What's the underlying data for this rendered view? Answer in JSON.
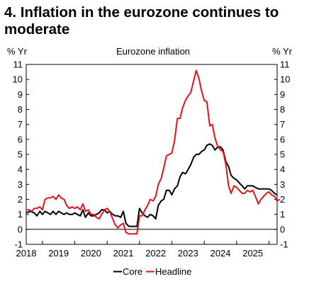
{
  "figure": {
    "title": "4. Inflation in the eurozone continues to moderate"
  },
  "chart_data": {
    "type": "line",
    "title": "Eurozone inflation",
    "ylabel_left": "% Yr",
    "ylabel_right": "% Yr",
    "xlim": [
      2017.5,
      2025.25
    ],
    "ylim": [
      -1,
      11
    ],
    "yticks": [
      -1,
      0,
      1,
      2,
      3,
      4,
      5,
      6,
      7,
      8,
      9,
      10,
      11
    ],
    "xtick_labels": [
      "2018",
      "2019",
      "2020",
      "2021",
      "2022",
      "2023",
      "2024",
      "2025"
    ],
    "grid": false,
    "zero_line": true,
    "legend_position": "bottom-center",
    "series": [
      {
        "name": "Core",
        "color": "#000000",
        "points": [
          [
            2017.5,
            1.1
          ],
          [
            2017.63,
            1.2
          ],
          [
            2017.75,
            1.1
          ],
          [
            2017.83,
            0.9
          ],
          [
            2017.92,
            1.2
          ],
          [
            2018.0,
            1.0
          ],
          [
            2018.08,
            1.2
          ],
          [
            2018.17,
            1.1
          ],
          [
            2018.25,
            1.0
          ],
          [
            2018.33,
            1.2
          ],
          [
            2018.42,
            1.0
          ],
          [
            2018.5,
            1.2
          ],
          [
            2018.58,
            1.1
          ],
          [
            2018.67,
            1.0
          ],
          [
            2018.75,
            1.1
          ],
          [
            2018.83,
            1.0
          ],
          [
            2018.92,
            1.0
          ],
          [
            2019.0,
            1.1
          ],
          [
            2019.08,
            1.0
          ],
          [
            2019.17,
            0.9
          ],
          [
            2019.25,
            1.3
          ],
          [
            2019.33,
            0.8
          ],
          [
            2019.42,
            1.1
          ],
          [
            2019.5,
            0.9
          ],
          [
            2019.58,
            0.9
          ],
          [
            2019.67,
            1.0
          ],
          [
            2019.75,
            1.1
          ],
          [
            2019.83,
            1.3
          ],
          [
            2019.92,
            1.3
          ],
          [
            2020.0,
            1.1
          ],
          [
            2020.08,
            1.2
          ],
          [
            2020.17,
            1.0
          ],
          [
            2020.25,
            0.9
          ],
          [
            2020.33,
            0.9
          ],
          [
            2020.42,
            0.8
          ],
          [
            2020.5,
            1.2
          ],
          [
            2020.58,
            0.4
          ],
          [
            2020.67,
            0.2
          ],
          [
            2020.75,
            0.2
          ],
          [
            2020.83,
            0.2
          ],
          [
            2020.92,
            0.2
          ],
          [
            2021.0,
            1.4
          ],
          [
            2021.08,
            1.1
          ],
          [
            2021.17,
            0.9
          ],
          [
            2021.25,
            0.8
          ],
          [
            2021.33,
            1.0
          ],
          [
            2021.42,
            0.9
          ],
          [
            2021.5,
            0.7
          ],
          [
            2021.58,
            1.6
          ],
          [
            2021.67,
            1.9
          ],
          [
            2021.75,
            2.0
          ],
          [
            2021.83,
            2.6
          ],
          [
            2021.92,
            2.6
          ],
          [
            2022.0,
            2.3
          ],
          [
            2022.08,
            2.7
          ],
          [
            2022.17,
            2.9
          ],
          [
            2022.25,
            3.5
          ],
          [
            2022.33,
            3.8
          ],
          [
            2022.42,
            3.7
          ],
          [
            2022.5,
            4.0
          ],
          [
            2022.58,
            4.3
          ],
          [
            2022.67,
            4.8
          ],
          [
            2022.75,
            5.0
          ],
          [
            2022.83,
            5.0
          ],
          [
            2022.92,
            5.2
          ],
          [
            2023.0,
            5.3
          ],
          [
            2023.08,
            5.6
          ],
          [
            2023.17,
            5.7
          ],
          [
            2023.25,
            5.6
          ],
          [
            2023.33,
            5.3
          ],
          [
            2023.42,
            5.5
          ],
          [
            2023.5,
            5.5
          ],
          [
            2023.58,
            5.3
          ],
          [
            2023.67,
            4.5
          ],
          [
            2023.75,
            4.2
          ],
          [
            2023.83,
            3.6
          ],
          [
            2023.92,
            3.4
          ],
          [
            2024.0,
            3.3
          ],
          [
            2024.08,
            3.1
          ],
          [
            2024.17,
            2.9
          ],
          [
            2024.25,
            2.7
          ],
          [
            2024.33,
            2.9
          ],
          [
            2024.42,
            2.9
          ],
          [
            2024.5,
            2.9
          ],
          [
            2024.58,
            2.8
          ],
          [
            2024.67,
            2.7
          ],
          [
            2024.75,
            2.7
          ],
          [
            2024.83,
            2.7
          ],
          [
            2024.92,
            2.7
          ],
          [
            2025.0,
            2.7
          ],
          [
            2025.08,
            2.6
          ],
          [
            2025.17,
            2.4
          ],
          [
            2025.25,
            2.3
          ]
        ]
      },
      {
        "name": "Headline",
        "color": "#e8101b",
        "points": [
          [
            2017.5,
            1.3
          ],
          [
            2017.58,
            1.3
          ],
          [
            2017.67,
            1.2
          ],
          [
            2017.75,
            1.4
          ],
          [
            2017.83,
            1.4
          ],
          [
            2017.92,
            1.5
          ],
          [
            2018.0,
            1.3
          ],
          [
            2018.08,
            2.0
          ],
          [
            2018.17,
            2.1
          ],
          [
            2018.25,
            2.1
          ],
          [
            2018.33,
            2.2
          ],
          [
            2018.42,
            2.0
          ],
          [
            2018.5,
            2.3
          ],
          [
            2018.58,
            2.1
          ],
          [
            2018.67,
            2.0
          ],
          [
            2018.75,
            1.6
          ],
          [
            2018.83,
            1.4
          ],
          [
            2018.92,
            1.5
          ],
          [
            2019.0,
            1.4
          ],
          [
            2019.08,
            1.5
          ],
          [
            2019.17,
            1.3
          ],
          [
            2019.25,
            1.7
          ],
          [
            2019.33,
            1.2
          ],
          [
            2019.42,
            1.3
          ],
          [
            2019.5,
            1.0
          ],
          [
            2019.58,
            1.0
          ],
          [
            2019.67,
            0.8
          ],
          [
            2019.75,
            0.7
          ],
          [
            2019.83,
            1.0
          ],
          [
            2019.92,
            1.3
          ],
          [
            2020.0,
            1.4
          ],
          [
            2020.08,
            1.2
          ],
          [
            2020.17,
            0.7
          ],
          [
            2020.25,
            0.3
          ],
          [
            2020.33,
            0.1
          ],
          [
            2020.42,
            0.3
          ],
          [
            2020.5,
            0.4
          ],
          [
            2020.58,
            -0.2
          ],
          [
            2020.67,
            -0.3
          ],
          [
            2020.75,
            -0.3
          ],
          [
            2020.83,
            -0.3
          ],
          [
            2020.92,
            -0.3
          ],
          [
            2021.0,
            0.9
          ],
          [
            2021.08,
            0.9
          ],
          [
            2021.17,
            1.3
          ],
          [
            2021.25,
            1.6
          ],
          [
            2021.33,
            2.0
          ],
          [
            2021.42,
            1.9
          ],
          [
            2021.5,
            2.2
          ],
          [
            2021.58,
            3.0
          ],
          [
            2021.67,
            3.4
          ],
          [
            2021.75,
            4.1
          ],
          [
            2021.83,
            4.9
          ],
          [
            2021.92,
            5.0
          ],
          [
            2022.0,
            5.1
          ],
          [
            2022.08,
            5.9
          ],
          [
            2022.17,
            7.4
          ],
          [
            2022.25,
            7.4
          ],
          [
            2022.33,
            8.1
          ],
          [
            2022.42,
            8.6
          ],
          [
            2022.5,
            8.9
          ],
          [
            2022.58,
            9.1
          ],
          [
            2022.67,
            9.9
          ],
          [
            2022.75,
            10.6
          ],
          [
            2022.83,
            10.1
          ],
          [
            2022.92,
            9.2
          ],
          [
            2023.0,
            8.6
          ],
          [
            2023.08,
            8.5
          ],
          [
            2023.17,
            6.9
          ],
          [
            2023.25,
            7.0
          ],
          [
            2023.33,
            6.1
          ],
          [
            2023.42,
            5.5
          ],
          [
            2023.5,
            5.3
          ],
          [
            2023.58,
            5.2
          ],
          [
            2023.67,
            4.3
          ],
          [
            2023.75,
            2.9
          ],
          [
            2023.83,
            2.4
          ],
          [
            2023.92,
            2.9
          ],
          [
            2024.0,
            2.8
          ],
          [
            2024.08,
            2.6
          ],
          [
            2024.17,
            2.4
          ],
          [
            2024.25,
            2.4
          ],
          [
            2024.33,
            2.6
          ],
          [
            2024.42,
            2.5
          ],
          [
            2024.5,
            2.6
          ],
          [
            2024.58,
            2.2
          ],
          [
            2024.67,
            1.7
          ],
          [
            2024.75,
            2.0
          ],
          [
            2024.83,
            2.2
          ],
          [
            2024.92,
            2.4
          ],
          [
            2025.0,
            2.5
          ],
          [
            2025.08,
            2.3
          ],
          [
            2025.17,
            2.2
          ],
          [
            2025.25,
            1.9
          ],
          [
            2025.33,
            2.0
          ]
        ]
      }
    ]
  }
}
